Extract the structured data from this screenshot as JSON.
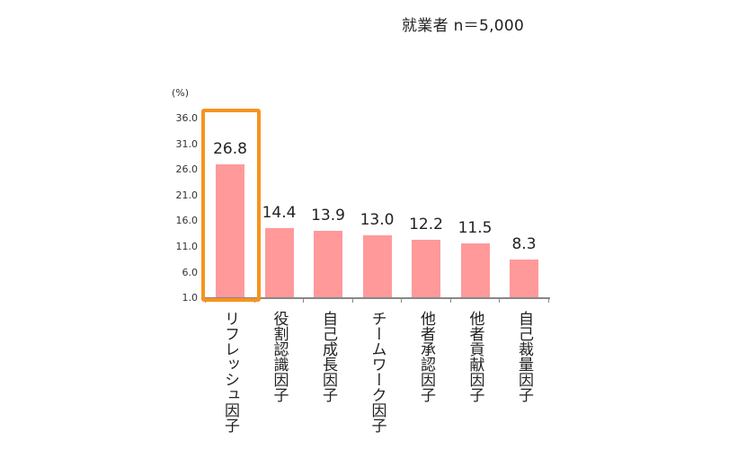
{
  "header": {
    "note": "就業者  n＝5,000"
  },
  "chart_data": {
    "type": "bar",
    "title": "",
    "subtitle": "就業者 n=5,000",
    "xlabel": "",
    "ylabel": "(%)",
    "ylim": [
      1.0,
      36.0
    ],
    "yticks": [
      "36.0",
      "31.0",
      "26.0",
      "21.0",
      "16.0",
      "11.0",
      "6.0",
      "1.0"
    ],
    "grid": false,
    "categories": [
      "リフレッシュ因子",
      "役割認識因子",
      "自己成長因子",
      "チームワーク因子",
      "他者承認因子",
      "他者貢献因子",
      "自己裁量因子"
    ],
    "values": [
      26.8,
      14.4,
      13.9,
      13.0,
      12.2,
      11.5,
      8.3
    ],
    "value_labels": [
      "26.8",
      "14.4",
      "13.9",
      "13.0",
      "12.2",
      "11.5",
      "8.3"
    ],
    "highlighted_category": "リフレッシュ因子",
    "colors": {
      "bar": "#ff999a",
      "highlight_border": "#f7931e"
    }
  }
}
